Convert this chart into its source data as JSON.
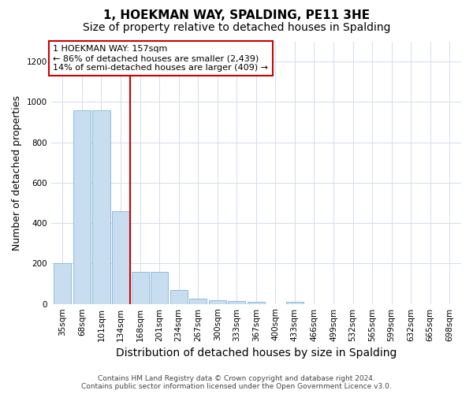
{
  "title": "1, HOEKMAN WAY, SPALDING, PE11 3HE",
  "subtitle": "Size of property relative to detached houses in Spalding",
  "xlabel": "Distribution of detached houses by size in Spalding",
  "ylabel": "Number of detached properties",
  "bar_labels": [
    "35sqm",
    "68sqm",
    "101sqm",
    "134sqm",
    "168sqm",
    "201sqm",
    "234sqm",
    "267sqm",
    "300sqm",
    "333sqm",
    "367sqm",
    "400sqm",
    "433sqm",
    "466sqm",
    "499sqm",
    "532sqm",
    "565sqm",
    "599sqm",
    "632sqm",
    "665sqm",
    "698sqm"
  ],
  "bar_values": [
    200,
    960,
    960,
    460,
    160,
    160,
    70,
    25,
    20,
    15,
    10,
    0,
    10,
    0,
    0,
    0,
    0,
    0,
    0,
    0,
    0
  ],
  "bar_color": "#c9ddf0",
  "bar_edge_color": "#6aaad4",
  "annotation_title": "1 HOEKMAN WAY: 157sqm",
  "annotation_line1": "← 86% of detached houses are smaller (2,439)",
  "annotation_line2": "14% of semi-detached houses are larger (409) →",
  "ylim": [
    0,
    1300
  ],
  "yticks": [
    0,
    200,
    400,
    600,
    800,
    1000,
    1200
  ],
  "footer_line1": "Contains HM Land Registry data © Crown copyright and database right 2024.",
  "footer_line2": "Contains public sector information licensed under the Open Government Licence v3.0.",
  "title_fontsize": 11,
  "subtitle_fontsize": 10,
  "axis_label_fontsize": 9,
  "tick_fontsize": 7.5,
  "annotation_fontsize": 8,
  "footer_fontsize": 6.5,
  "bg_color": "#ffffff",
  "grid_color": "#d4dcec",
  "red_line_color": "#cc0000",
  "annotation_box_color": "#ffffff",
  "annotation_box_edge": "#cc0000",
  "red_line_x": 3.5
}
